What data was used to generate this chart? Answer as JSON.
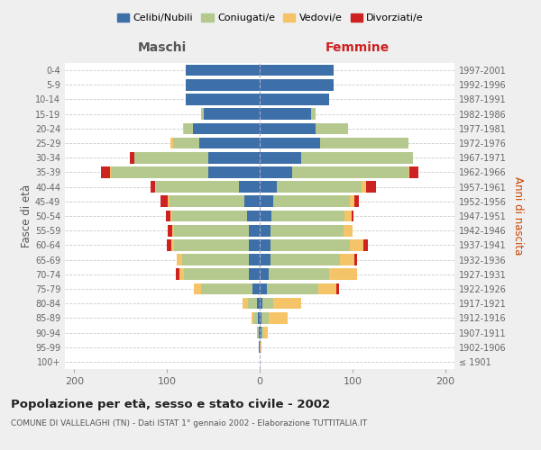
{
  "age_groups": [
    "100+",
    "95-99",
    "90-94",
    "85-89",
    "80-84",
    "75-79",
    "70-74",
    "65-69",
    "60-64",
    "55-59",
    "50-54",
    "45-49",
    "40-44",
    "35-39",
    "30-34",
    "25-29",
    "20-24",
    "15-19",
    "10-14",
    "5-9",
    "0-4"
  ],
  "birth_years": [
    "≤ 1901",
    "1902-1906",
    "1907-1911",
    "1912-1916",
    "1917-1921",
    "1922-1926",
    "1927-1931",
    "1932-1936",
    "1937-1941",
    "1942-1946",
    "1947-1951",
    "1952-1956",
    "1957-1961",
    "1962-1966",
    "1967-1971",
    "1972-1976",
    "1977-1981",
    "1982-1986",
    "1987-1991",
    "1992-1996",
    "1997-2001"
  ],
  "maschi": {
    "celibi": [
      0,
      1,
      1,
      2,
      3,
      8,
      12,
      12,
      12,
      12,
      14,
      17,
      22,
      55,
      55,
      65,
      72,
      60,
      80,
      80,
      80
    ],
    "coniugati": [
      0,
      0,
      2,
      5,
      10,
      55,
      70,
      72,
      80,
      80,
      80,
      80,
      90,
      105,
      80,
      28,
      10,
      3,
      0,
      0,
      0
    ],
    "vedovi": [
      0,
      0,
      0,
      2,
      5,
      8,
      5,
      5,
      3,
      2,
      2,
      2,
      1,
      1,
      0,
      3,
      1,
      0,
      0,
      0,
      0
    ],
    "divorziati": [
      0,
      0,
      0,
      0,
      0,
      0,
      3,
      0,
      5,
      5,
      5,
      8,
      5,
      10,
      5,
      0,
      0,
      0,
      0,
      0,
      0
    ]
  },
  "femmine": {
    "nubili": [
      0,
      0,
      2,
      2,
      3,
      8,
      10,
      12,
      12,
      12,
      13,
      15,
      18,
      35,
      45,
      65,
      60,
      55,
      75,
      80,
      80
    ],
    "coniugate": [
      0,
      0,
      2,
      8,
      12,
      55,
      65,
      75,
      85,
      78,
      78,
      82,
      92,
      125,
      120,
      95,
      35,
      5,
      0,
      0,
      0
    ],
    "vedove": [
      0,
      2,
      5,
      20,
      30,
      20,
      30,
      15,
      15,
      10,
      8,
      5,
      5,
      1,
      0,
      0,
      0,
      0,
      0,
      0,
      0
    ],
    "divorziate": [
      0,
      0,
      0,
      0,
      0,
      3,
      0,
      3,
      5,
      0,
      2,
      5,
      10,
      10,
      0,
      0,
      0,
      0,
      0,
      0,
      0
    ]
  },
  "colors": {
    "celibi": "#3d6fa8",
    "coniugati": "#b5c98e",
    "vedovi": "#f5c469",
    "divorziati": "#cc2222"
  },
  "title": "Popolazione per età, sesso e stato civile - 2002",
  "subtitle": "COMUNE DI VALLELAGHI (TN) - Dati ISTAT 1° gennaio 2002 - Elaborazione TUTTITALIA.IT",
  "xlabel_left": "Maschi",
  "xlabel_right": "Femmine",
  "ylabel_left": "Fasce di età",
  "ylabel_right": "Anni di nascita",
  "xlim": 210,
  "background_color": "#efefef",
  "plot_bg_color": "#ffffff",
  "legend_labels": [
    "Celibi/Nubili",
    "Coniugati/e",
    "Vedovi/e",
    "Divorziati/e"
  ]
}
